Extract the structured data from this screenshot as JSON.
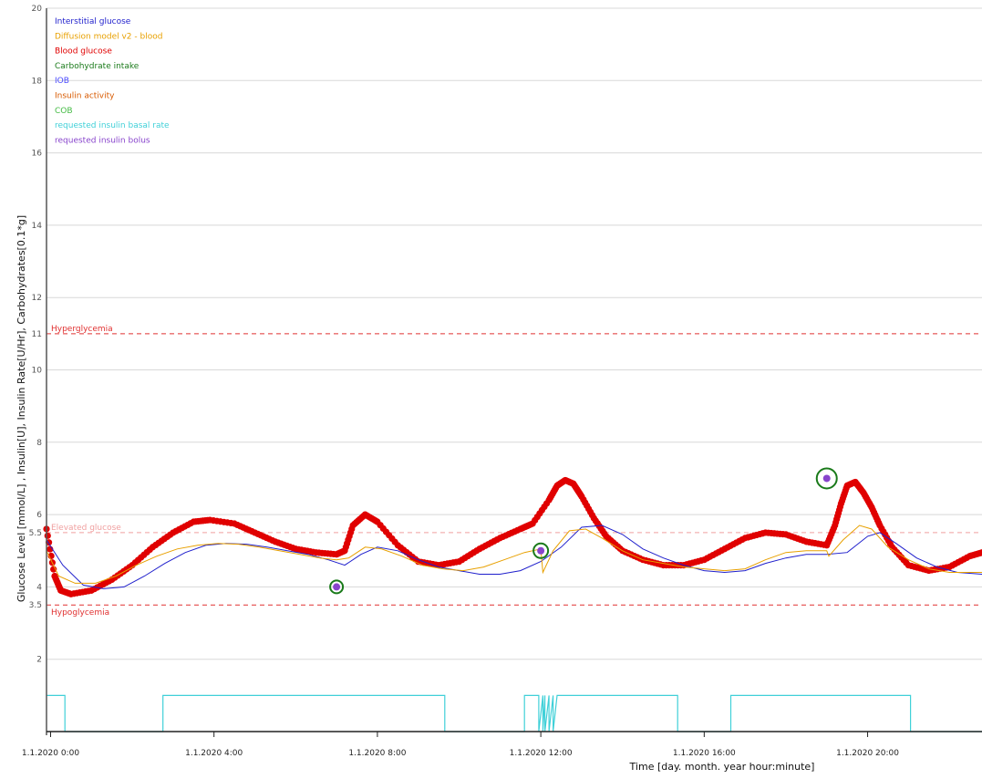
{
  "chart_data": {
    "type": "line",
    "xlabel": "Time [day. month. year hour:minute]",
    "ylabel": "Glucose Level [mmol/L] , Insulin[U], Insulin Rate[U/Hr], Carbohydrates[0.1*g]",
    "xlim": [
      -0.1,
      22.8
    ],
    "ylim": [
      0,
      20
    ],
    "grid": true,
    "legend_position": "top-left",
    "y_ticks": [
      {
        "value": 2,
        "label": "2"
      },
      {
        "value": 3.5,
        "label": "3.5"
      },
      {
        "value": 4,
        "label": "4"
      },
      {
        "value": 5.5,
        "label": "5.5"
      },
      {
        "value": 6,
        "label": "6"
      },
      {
        "value": 8,
        "label": "8"
      },
      {
        "value": 10,
        "label": "10"
      },
      {
        "value": 11,
        "label": "11"
      },
      {
        "value": 12,
        "label": "12"
      },
      {
        "value": 14,
        "label": "14"
      },
      {
        "value": 16,
        "label": "16"
      },
      {
        "value": 18,
        "label": "18"
      },
      {
        "value": 20,
        "label": "20"
      }
    ],
    "x_ticks": [
      {
        "value": 0,
        "label": "1.1.2020 0:00"
      },
      {
        "value": 4,
        "label": "1.1.2020 4:00"
      },
      {
        "value": 8,
        "label": "1.1.2020 8:00"
      },
      {
        "value": 12,
        "label": "1.1.2020 12:00"
      },
      {
        "value": 16,
        "label": "1.1.2020 16:00"
      },
      {
        "value": 20,
        "label": "1.1.2020 20:00"
      }
    ],
    "thresholds": [
      {
        "value": 11,
        "label": "Hyperglycemia",
        "color": "#e03030"
      },
      {
        "value": 5.5,
        "label": "Elevated glucose",
        "color": "#f0a0a0"
      },
      {
        "value": 3.5,
        "label": "Hypoglycemia",
        "color": "#e03030"
      }
    ],
    "legend": [
      {
        "name": "Interstitial glucose",
        "color": "#1f1fcc"
      },
      {
        "name": "Diffusion model v2 - blood",
        "color": "#e8a000"
      },
      {
        "name": "Blood glucose",
        "color": "#e00000"
      },
      {
        "name": "Carbohydrate intake",
        "color": "#1a7a1a"
      },
      {
        "name": "IOB",
        "color": "#4a4aff"
      },
      {
        "name": "Insulin activity",
        "color": "#d85a00"
      },
      {
        "name": "COB",
        "color": "#44bb44"
      },
      {
        "name": "requested insulin basal rate",
        "color": "#40d0d8"
      },
      {
        "name": "requested insulin bolus",
        "color": "#8844cc"
      }
    ],
    "series": [
      {
        "name": "Blood glucose",
        "type": "scatter",
        "x": [
          -0.1,
          0.1,
          0.25,
          0.5,
          1.0,
          1.5,
          2.0,
          2.5,
          3.0,
          3.5,
          3.9,
          4.5,
          5.0,
          5.5,
          6.0,
          6.5,
          7.0,
          7.2,
          7.4,
          7.7,
          8.0,
          8.5,
          9.0,
          9.5,
          10.0,
          10.5,
          11.0,
          11.5,
          11.8,
          12.2,
          12.4,
          12.6,
          12.8,
          13.0,
          13.3,
          13.6,
          14.0,
          14.5,
          15.0,
          15.5,
          16.0,
          16.5,
          17.0,
          17.5,
          18.0,
          18.5,
          19.0,
          19.2,
          19.35,
          19.5,
          19.7,
          19.9,
          20.1,
          20.3,
          20.6,
          21.0,
          21.5,
          22.0,
          22.5,
          22.8
        ],
        "y": [
          5.6,
          4.3,
          3.9,
          3.8,
          3.9,
          4.2,
          4.6,
          5.1,
          5.5,
          5.8,
          5.85,
          5.75,
          5.5,
          5.25,
          5.05,
          4.95,
          4.9,
          5.0,
          5.7,
          6.0,
          5.8,
          5.15,
          4.7,
          4.6,
          4.7,
          5.05,
          5.35,
          5.6,
          5.75,
          6.4,
          6.8,
          6.95,
          6.85,
          6.5,
          5.9,
          5.4,
          5.0,
          4.75,
          4.6,
          4.6,
          4.75,
          5.05,
          5.35,
          5.5,
          5.45,
          5.25,
          5.15,
          5.7,
          6.3,
          6.8,
          6.9,
          6.6,
          6.2,
          5.7,
          5.1,
          4.6,
          4.45,
          4.55,
          4.85,
          4.95
        ]
      },
      {
        "name": "Interstitial glucose",
        "type": "line",
        "x": [
          -0.1,
          0.3,
          0.8,
          1.3,
          1.8,
          2.3,
          2.8,
          3.3,
          3.8,
          4.3,
          4.8,
          5.3,
          5.8,
          6.3,
          6.8,
          7.2,
          7.6,
          8.0,
          8.5,
          9.0,
          9.5,
          10.0,
          10.5,
          11.0,
          11.5,
          12.0,
          12.5,
          13.0,
          13.5,
          14.0,
          14.5,
          15.0,
          15.5,
          16.0,
          16.5,
          17.0,
          17.5,
          18.0,
          18.5,
          19.0,
          19.5,
          20.0,
          20.3,
          20.7,
          21.2,
          21.7,
          22.2,
          22.8
        ],
        "y": [
          5.3,
          4.6,
          4.05,
          3.95,
          4.0,
          4.3,
          4.65,
          4.95,
          5.15,
          5.2,
          5.18,
          5.1,
          5.0,
          4.9,
          4.75,
          4.6,
          4.9,
          5.1,
          5.0,
          4.75,
          4.55,
          4.45,
          4.35,
          4.35,
          4.45,
          4.7,
          5.1,
          5.65,
          5.7,
          5.45,
          5.05,
          4.8,
          4.6,
          4.45,
          4.4,
          4.45,
          4.65,
          4.8,
          4.9,
          4.9,
          4.95,
          5.4,
          5.5,
          5.2,
          4.8,
          4.55,
          4.4,
          4.35
        ]
      },
      {
        "name": "Diffusion model v2 - blood",
        "type": "line",
        "x": [
          -0.1,
          0.2,
          0.6,
          1.1,
          1.6,
          2.1,
          2.6,
          3.1,
          3.6,
          4.1,
          4.6,
          5.1,
          5.6,
          6.1,
          6.6,
          7.0,
          7.3,
          7.7,
          8.1,
          8.6,
          9.1,
          9.6,
          10.1,
          10.6,
          11.1,
          11.6,
          12.0,
          12.05,
          12.3,
          12.7,
          13.1,
          13.5,
          14.0,
          14.5,
          15.0,
          15.5,
          16.0,
          16.5,
          17.0,
          17.5,
          18.0,
          18.5,
          19.0,
          19.05,
          19.4,
          19.8,
          20.1,
          20.5,
          21.0,
          21.5,
          22.0,
          22.8
        ],
        "y": [
          5.0,
          4.3,
          4.1,
          4.1,
          4.3,
          4.6,
          4.85,
          5.05,
          5.15,
          5.2,
          5.18,
          5.1,
          5.0,
          4.9,
          4.8,
          4.75,
          4.8,
          5.1,
          5.05,
          4.85,
          4.6,
          4.5,
          4.45,
          4.55,
          4.75,
          4.95,
          5.05,
          4.4,
          5.0,
          5.55,
          5.6,
          5.35,
          5.0,
          4.75,
          4.65,
          4.55,
          4.5,
          4.45,
          4.5,
          4.75,
          4.95,
          5.0,
          5.0,
          4.85,
          5.3,
          5.7,
          5.6,
          5.1,
          4.75,
          4.5,
          4.4,
          4.4
        ]
      },
      {
        "name": "Carbohydrate intake",
        "type": "scatter",
        "x": [
          7.0,
          12.0,
          19.0
        ],
        "y": [
          4.0,
          5.0,
          7.0
        ],
        "size": [
          7,
          8,
          11
        ]
      },
      {
        "name": "requested insulin bolus",
        "type": "scatter",
        "x": [
          7.0,
          12.0,
          19.0
        ],
        "y": [
          4.0,
          5.0,
          7.0
        ]
      },
      {
        "name": "requested insulin basal rate",
        "type": "step",
        "x": [
          -0.1,
          0.35,
          0.35,
          2.75,
          2.75,
          9.65,
          9.65,
          11.6,
          11.6,
          11.95,
          11.95,
          12.05,
          12.05,
          12.1,
          12.1,
          12.2,
          12.2,
          12.3,
          12.3,
          12.4,
          12.4,
          15.35,
          15.35,
          16.65,
          16.65,
          21.05,
          21.05,
          22.8
        ],
        "y": [
          1.0,
          1.0,
          0,
          0,
          1.0,
          1.0,
          0,
          0,
          1.0,
          1.0,
          0,
          1.0,
          0,
          1.0,
          0,
          1.0,
          0,
          1.0,
          0,
          1.0,
          1.0,
          1.0,
          0,
          0,
          1.0,
          1.0,
          0,
          0
        ]
      }
    ]
  }
}
